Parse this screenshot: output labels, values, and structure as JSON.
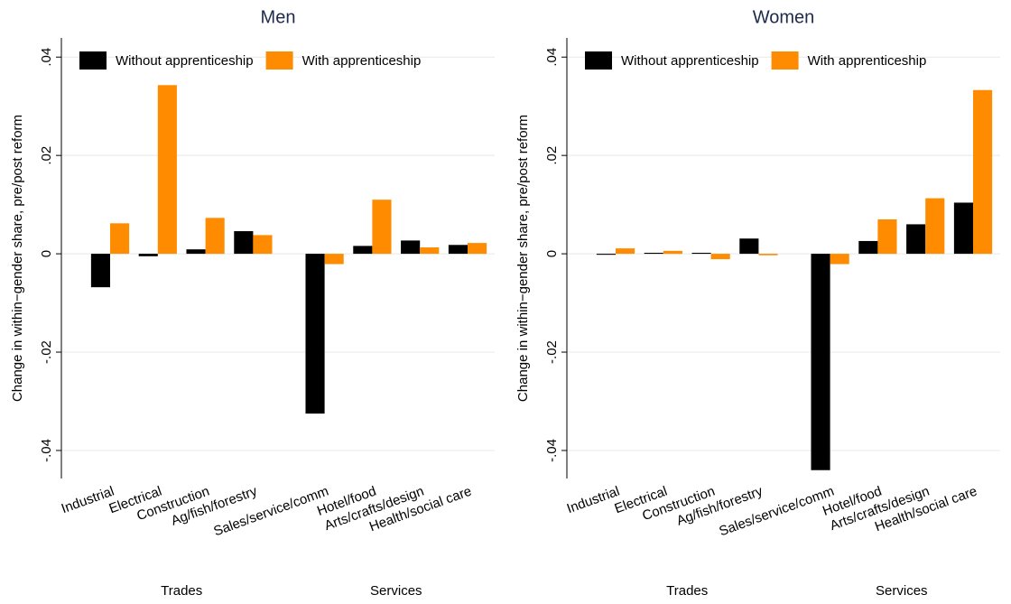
{
  "chart_data": [
    {
      "type": "bar",
      "title": "Men",
      "y_label": "Change in within−gender share, pre/post reform",
      "categories": [
        "Industrial",
        "Electrical",
        "Construction",
        "Ag/fish/forestry",
        "Sales/service/comm",
        "Hotel/food",
        "Arts/crafts/design",
        "Health/social care"
      ],
      "groups": [
        "Trades",
        "Services"
      ],
      "series": [
        {
          "name": "Without apprenticeship",
          "color": "#000000",
          "values": [
            -0.0068,
            -0.0005,
            0.0009,
            0.0046,
            -0.0325,
            0.0016,
            0.0027,
            0.0018
          ]
        },
        {
          "name": "With apprenticeship",
          "color": "#ff8c00",
          "values": [
            0.0062,
            0.0343,
            0.0073,
            0.0038,
            -0.0021,
            0.011,
            0.0013,
            0.0022
          ]
        }
      ],
      "ylim": [
        -0.0457,
        0.0439
      ],
      "yticks": [
        {
          "value": -0.04,
          "label": "-.04"
        },
        {
          "value": -0.02,
          "label": "-.02"
        },
        0,
        {
          "value": 0.02,
          "label": ".02"
        },
        {
          "value": 0.04,
          "label": ".04"
        }
      ],
      "grid": true,
      "legend": "top"
    },
    {
      "type": "bar",
      "title": "Women",
      "y_label": "Change in within−gender share, pre/post reform",
      "categories": [
        "Industrial",
        "Electrical",
        "Construction",
        "Ag/fish/forestry",
        "Sales/service/comm",
        "Hotel/food",
        "Arts/crafts/design",
        "Health/social care"
      ],
      "groups": [
        "Trades",
        "Services"
      ],
      "series": [
        {
          "name": "Without apprenticeship",
          "color": "#000000",
          "values": [
            -0.0002,
            0.0002,
            0.0002,
            0.0031,
            -0.044,
            0.0026,
            0.006,
            0.0104
          ]
        },
        {
          "name": "With apprenticeship",
          "color": "#ff8c00",
          "values": [
            0.0011,
            0.0006,
            -0.0011,
            -0.0003,
            -0.0021,
            0.007,
            0.0113,
            0.0333
          ]
        }
      ],
      "ylim": [
        -0.0457,
        0.0439
      ],
      "yticks": [
        {
          "value": -0.04,
          "label": "-.04"
        },
        {
          "value": -0.02,
          "label": "-.02"
        },
        0,
        {
          "value": 0.02,
          "label": ".02"
        },
        {
          "value": 0.04,
          "label": ".04"
        }
      ],
      "grid": true,
      "legend": "top"
    }
  ]
}
